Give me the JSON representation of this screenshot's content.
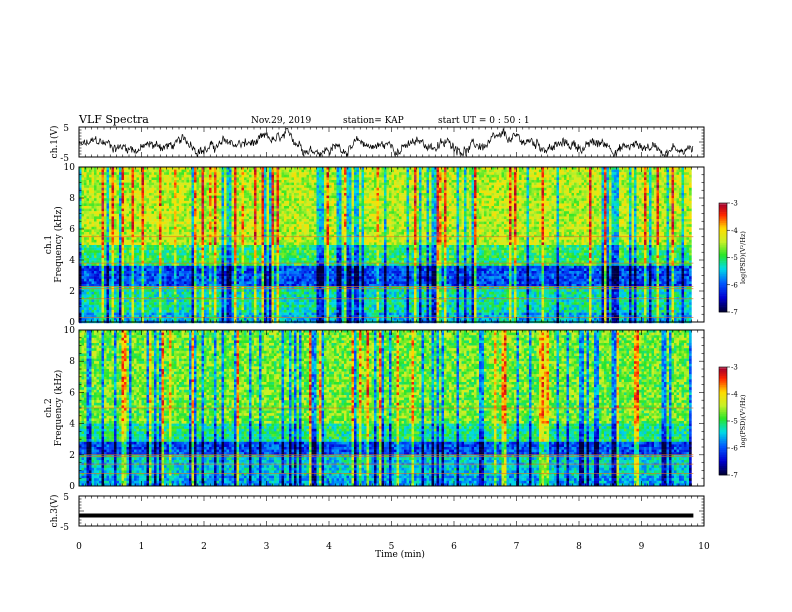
{
  "header": {
    "title": "VLF Spectra",
    "date": "Nov.29, 2019",
    "station": "station= KAP",
    "start": "start  UT =   0 : 50 : 1"
  },
  "chart_data": [
    {
      "type": "line",
      "name": "ch1-waveform",
      "ylabel": "ch.1(V)",
      "ylim": [
        -5,
        5
      ],
      "yticks": [
        "5",
        "-5"
      ],
      "xlim": [
        0,
        10
      ],
      "x_extent": [
        0,
        9.83
      ],
      "description_level": "noisy trace mostly between -4 and 2 V",
      "color": "#000000"
    },
    {
      "type": "heatmap",
      "name": "ch1-spectrogram",
      "ylabel_1": "ch.1",
      "ylabel_2": "Frequency  (kHz)",
      "ylim": [
        0,
        10
      ],
      "yticks": [
        "0",
        "2",
        "4",
        "6",
        "8",
        "10"
      ],
      "xlim": [
        0,
        10
      ],
      "x_extent": [
        0,
        9.83
      ],
      "colorbar": {
        "range": [
          -7,
          -3
        ],
        "ticks": [
          "-3",
          "-4",
          "-5",
          "-6",
          "-7"
        ],
        "label": "log(PSD)(V²/Hz)"
      }
    },
    {
      "type": "heatmap",
      "name": "ch2-spectrogram",
      "ylabel_1": "ch.2",
      "ylabel_2": "Frequency  (kHz)",
      "ylim": [
        0,
        10
      ],
      "yticks": [
        "0",
        "2",
        "4",
        "6",
        "8",
        "10"
      ],
      "xlim": [
        0,
        10
      ],
      "x_extent": [
        0,
        9.83
      ],
      "colorbar": {
        "range": [
          -7,
          -3
        ],
        "ticks": [
          "-3",
          "-4",
          "-5",
          "-6",
          "-7"
        ],
        "label": "log(PSD)(V²/Hz)"
      }
    },
    {
      "type": "line",
      "name": "ch3-waveform",
      "ylabel": "ch.3(V)",
      "ylim": [
        -5,
        5
      ],
      "yticks": [
        "5",
        "-5"
      ],
      "xlim": [
        0,
        10
      ],
      "x_extent": [
        0,
        9.83
      ],
      "constant_value": -1.5,
      "color": "#000000"
    }
  ],
  "xaxis": {
    "label": "Time  (min)",
    "ticks": [
      "0",
      "1",
      "2",
      "3",
      "4",
      "5",
      "6",
      "7",
      "8",
      "9",
      "10"
    ]
  }
}
